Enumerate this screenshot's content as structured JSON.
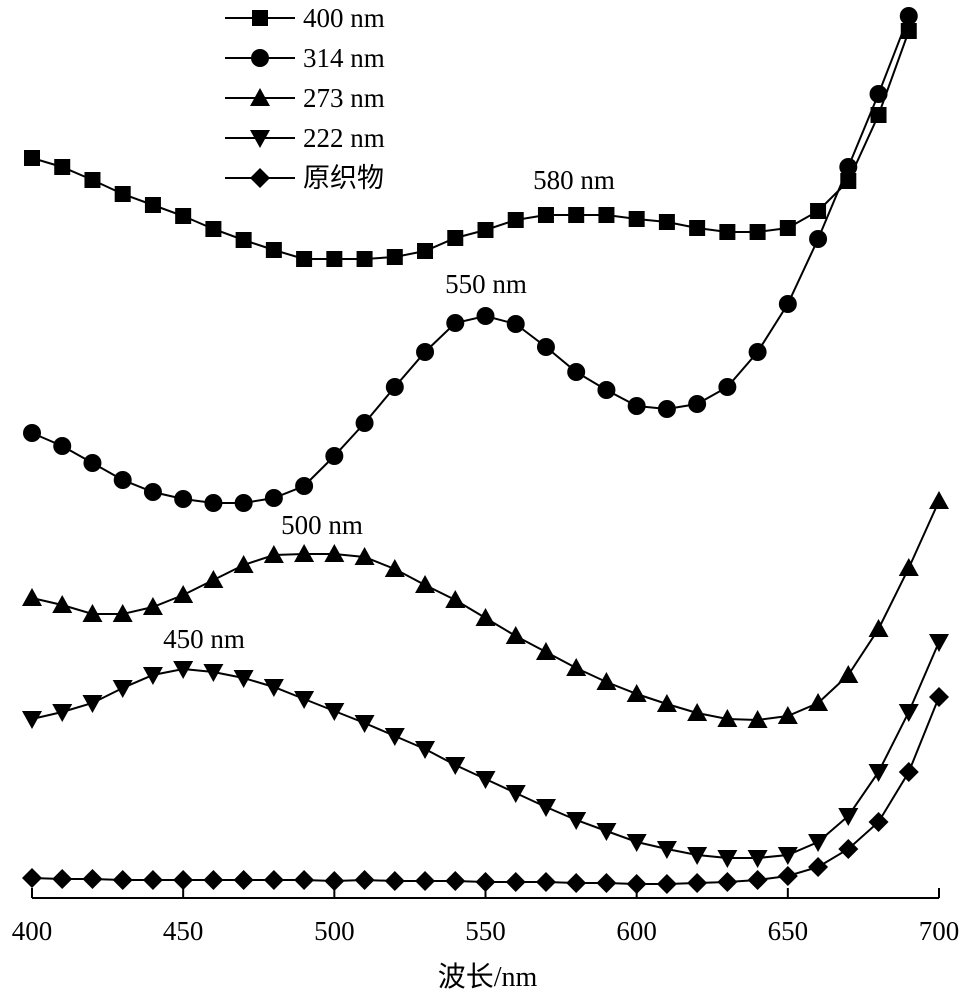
{
  "chart_data": {
    "type": "line",
    "title": "",
    "xlabel": "波长/nm",
    "ylabel": "",
    "xlim": [
      400,
      700
    ],
    "x_ticks": [
      400,
      450,
      500,
      550,
      600,
      650,
      700
    ],
    "y_axis_shown": false,
    "y_units": "relative (curves vertically offset, no scale shown)",
    "grid": false,
    "legend_position": "top-left",
    "colors": {
      "line": "#000000",
      "background": "#ffffff"
    },
    "annotations": [
      "580 nm",
      "550 nm",
      "500 nm",
      "450 nm"
    ],
    "series": [
      {
        "name": "400 nm",
        "marker": "square",
        "x": [
          400,
          410,
          420,
          430,
          440,
          450,
          460,
          470,
          480,
          490,
          500,
          510,
          520,
          530,
          540,
          550,
          560,
          570,
          580,
          590,
          600,
          610,
          620,
          630,
          640,
          650,
          660,
          670,
          680,
          690
        ],
        "y": [
          727,
          718,
          705,
          691,
          680,
          669,
          656,
          645,
          635,
          626,
          626,
          626,
          628,
          634,
          647,
          655,
          665,
          670,
          670,
          670,
          666,
          663,
          657,
          653,
          653,
          657,
          674,
          704,
          770,
          854
        ]
      },
      {
        "name": "314 nm",
        "marker": "circle",
        "x": [
          400,
          410,
          420,
          430,
          440,
          450,
          460,
          470,
          480,
          490,
          500,
          510,
          520,
          530,
          540,
          550,
          560,
          570,
          580,
          590,
          600,
          610,
          620,
          630,
          640,
          650,
          660,
          670,
          680,
          690
        ],
        "y": [
          452,
          439,
          422,
          405,
          393,
          386,
          382,
          382,
          387,
          399,
          429,
          462,
          498,
          533,
          562,
          569,
          561,
          538,
          513,
          495,
          479,
          476,
          481,
          498,
          533,
          581,
          646,
          718,
          791,
          869
        ]
      },
      {
        "name": "273 nm",
        "marker": "triangle-up",
        "x": [
          400,
          410,
          420,
          430,
          440,
          450,
          460,
          470,
          480,
          490,
          500,
          510,
          520,
          530,
          540,
          550,
          560,
          570,
          580,
          590,
          600,
          610,
          620,
          630,
          640,
          650,
          660,
          670,
          680,
          690,
          700
        ],
        "y": [
          287,
          280,
          271,
          271,
          278,
          290,
          305,
          320,
          330,
          331,
          331,
          328,
          316,
          300,
          285,
          267,
          249,
          233,
          217,
          203,
          191,
          181,
          172,
          166,
          165,
          169,
          182,
          210,
          256,
          317,
          384
        ]
      },
      {
        "name": "222 nm",
        "marker": "triangle-down",
        "x": [
          400,
          410,
          420,
          430,
          440,
          450,
          460,
          470,
          480,
          490,
          500,
          510,
          520,
          530,
          540,
          550,
          560,
          570,
          580,
          590,
          600,
          610,
          620,
          630,
          640,
          650,
          660,
          670,
          680,
          690,
          700
        ],
        "y": [
          166,
          173,
          182,
          197,
          210,
          216,
          213,
          207,
          198,
          186,
          174,
          162,
          149,
          136,
          120,
          106,
          92,
          78,
          65,
          54,
          43,
          36,
          30,
          27,
          27,
          30,
          43,
          69,
          113,
          173,
          243
        ]
      },
      {
        "name": "原织物",
        "marker": "diamond",
        "x": [
          400,
          410,
          420,
          430,
          440,
          450,
          460,
          470,
          480,
          490,
          500,
          510,
          520,
          530,
          540,
          550,
          560,
          570,
          580,
          590,
          600,
          610,
          620,
          630,
          640,
          650,
          660,
          670,
          680,
          690,
          700
        ],
        "y": [
          7,
          6,
          6,
          5,
          5,
          5,
          5,
          5,
          5,
          5,
          4,
          5,
          4,
          4,
          4,
          3,
          3,
          3,
          2,
          2,
          1,
          1,
          2,
          3,
          5,
          9,
          18,
          36,
          63,
          113,
          188
        ]
      }
    ]
  }
}
